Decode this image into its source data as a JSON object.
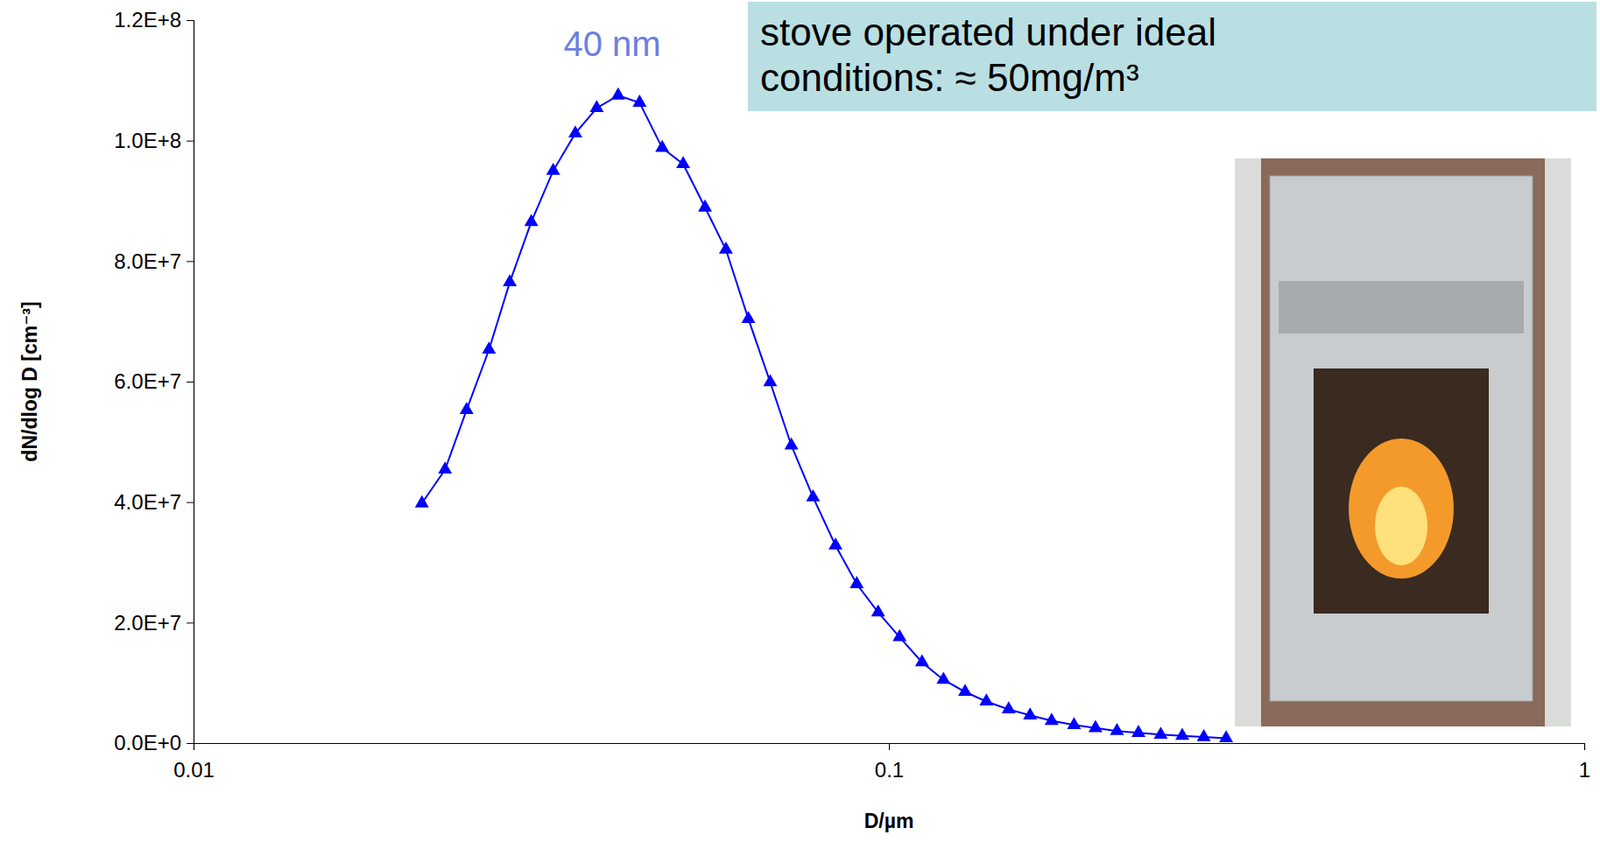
{
  "chart_data": {
    "type": "line",
    "xlabel": "D/µm",
    "ylabel": "dN/dlog D [cm⁻³]",
    "log": "x",
    "xlim": [
      0.01,
      1
    ],
    "xticks": [
      0.01,
      0.1,
      1
    ],
    "ylim": [
      0,
      120000000
    ],
    "yticks": [
      {
        "value": 0,
        "label": "0.0E+0"
      },
      {
        "value": 20000000,
        "label": "2.0E+7"
      },
      {
        "value": 40000000,
        "label": "4.0E+7"
      },
      {
        "value": 60000000,
        "label": "6.0E+7"
      },
      {
        "value": 80000000,
        "label": "8.0E+7"
      },
      {
        "value": 100000000,
        "label": "1.0E+8"
      },
      {
        "value": 120000000,
        "label": "1.2E+8"
      }
    ],
    "grid": false,
    "x": [
      0.0213,
      0.023,
      0.0247,
      0.0266,
      0.0285,
      0.0306,
      0.0329,
      0.0354,
      0.038,
      0.0408,
      0.0438,
      0.0472,
      0.0506,
      0.0544,
      0.0583,
      0.0628,
      0.0675,
      0.0724,
      0.0778,
      0.0838,
      0.0899,
      0.0965,
      0.1036,
      0.1116,
      0.1198,
      0.1287,
      0.1381,
      0.1487,
      0.1596,
      0.1714,
      0.1846,
      0.1982,
      0.2128,
      0.2285,
      0.246,
      0.2642,
      0.2837,
      0.3055
    ],
    "series": [
      {
        "color": "#0000ff",
        "marker": "triangle",
        "line_style": "solid",
        "values": [
          39800000,
          45400000,
          55300000,
          65300000,
          76500000,
          86500000,
          95000000,
          101200000,
          105400000,
          107500000,
          106300000,
          98800000,
          96100000,
          88900000,
          81900000,
          70400000,
          59900000,
          49400000,
          40800000,
          32800000,
          26400000,
          21700000,
          17600000,
          13400000,
          10500000,
          8500000,
          6900000,
          5600000,
          4600000,
          3700000,
          3000000,
          2500000,
          2000000,
          1700000,
          1400000,
          1200000,
          1000000,
          800000
        ]
      }
    ],
    "annotations": [
      {
        "text": "40 nm",
        "x": 0.04,
        "y": 114000000,
        "color": "#6b7fe0"
      },
      {
        "text": "stove operated under ideal conditions: ≈ 50mg/m³"
      }
    ]
  }
}
